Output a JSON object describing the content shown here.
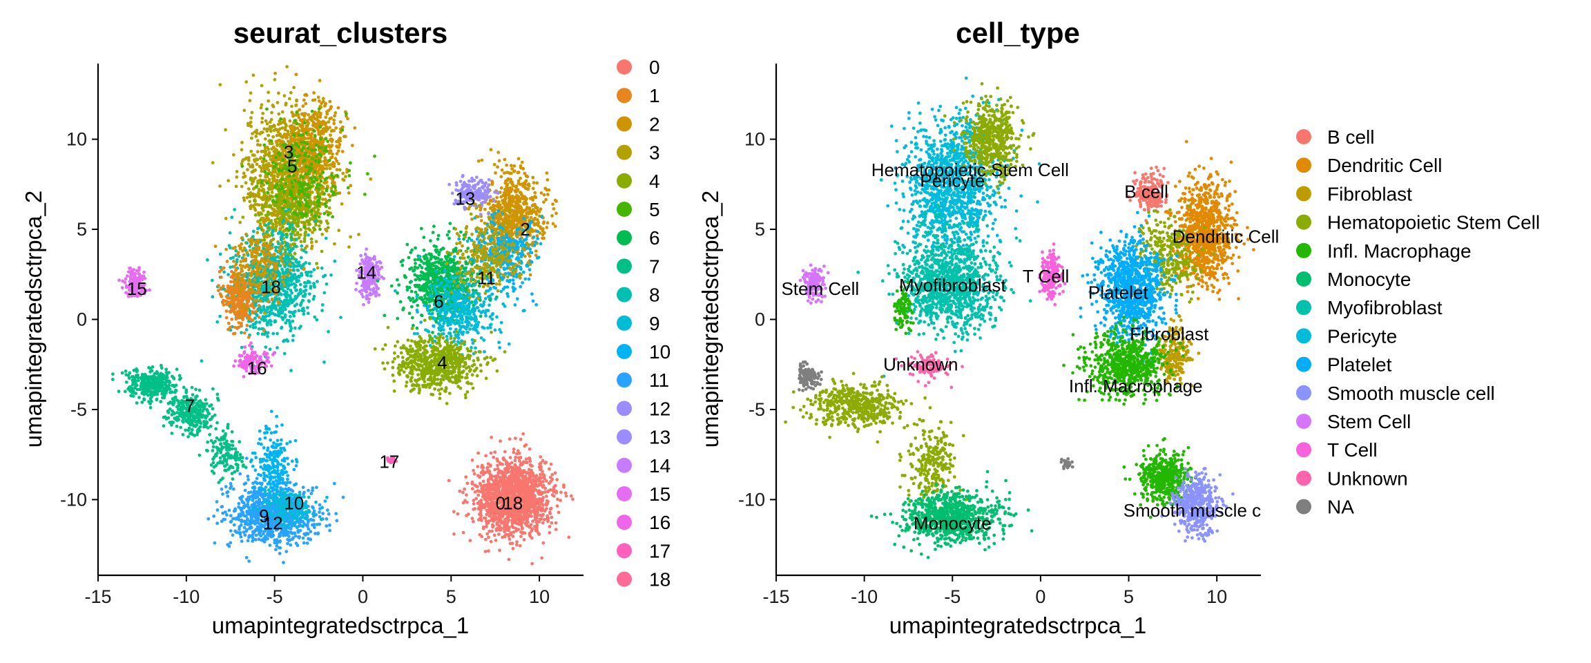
{
  "chart_data": [
    {
      "type": "scatter",
      "title": "seurat_clusters",
      "xlabel": "umapintegratedsctrpca_1",
      "ylabel": "umapintegratedsctrpca_2",
      "xlim": [
        -15,
        12.5
      ],
      "ylim": [
        -14.2,
        14.2
      ],
      "x_ticks": [
        "-15",
        "-10",
        "-5",
        "0",
        "5",
        "10"
      ],
      "x_tick_values": [
        -15,
        -10,
        -5,
        0,
        5,
        10
      ],
      "y_ticks": [
        "-10",
        "-5",
        "0",
        "5",
        "10"
      ],
      "y_tick_values": [
        -10,
        -5,
        0,
        5,
        10
      ],
      "legend_position": "right",
      "legend": [
        {
          "label": "0",
          "color": "#F8766D"
        },
        {
          "label": "1",
          "color": "#E7851E"
        },
        {
          "label": "2",
          "color": "#D09400"
        },
        {
          "label": "3",
          "color": "#B2A100"
        },
        {
          "label": "4",
          "color": "#89AC00"
        },
        {
          "label": "5",
          "color": "#45B500"
        },
        {
          "label": "6",
          "color": "#00BC51"
        },
        {
          "label": "7",
          "color": "#00C087"
        },
        {
          "label": "8",
          "color": "#00C0B2"
        },
        {
          "label": "9",
          "color": "#00BCD6"
        },
        {
          "label": "10",
          "color": "#00B3F2"
        },
        {
          "label": "11",
          "color": "#29A3FF"
        },
        {
          "label": "12",
          "color": "#9C8DFF"
        },
        {
          "label": "13",
          "color": "#9C8DFF"
        },
        {
          "label": "14",
          "color": "#C77CFF"
        },
        {
          "label": "15",
          "color": "#E46DF2"
        },
        {
          "label": "16",
          "color": "#F066EA"
        },
        {
          "label": "17",
          "color": "#FF62BC"
        },
        {
          "label": "18",
          "color": "#FF6A98"
        }
      ],
      "cluster_labels": [
        {
          "text": "3",
          "x": -4.2,
          "y": 9.3
        },
        {
          "text": "5",
          "x": -4.0,
          "y": 8.5
        },
        {
          "text": "18",
          "x": -5.2,
          "y": 1.8
        },
        {
          "text": "15",
          "x": -12.8,
          "y": 1.7
        },
        {
          "text": "16",
          "x": -6.0,
          "y": -2.7
        },
        {
          "text": "7",
          "x": -9.8,
          "y": -4.8
        },
        {
          "text": "13",
          "x": 5.8,
          "y": 6.7
        },
        {
          "text": "2",
          "x": 9.2,
          "y": 5.0
        },
        {
          "text": "14",
          "x": 0.2,
          "y": 2.6
        },
        {
          "text": "11",
          "x": 7.0,
          "y": 2.3
        },
        {
          "text": "6",
          "x": 4.3,
          "y": 1.0
        },
        {
          "text": "4",
          "x": 4.5,
          "y": -2.4
        },
        {
          "text": "17",
          "x": 1.5,
          "y": -7.9
        },
        {
          "text": "10",
          "x": -3.9,
          "y": -10.2
        },
        {
          "text": "9",
          "x": -5.6,
          "y": -10.9
        },
        {
          "text": "12",
          "x": -5.1,
          "y": -11.3
        },
        {
          "text": "0",
          "x": 7.8,
          "y": -10.2
        },
        {
          "text": "18",
          "x": 8.5,
          "y": -10.2
        }
      ],
      "series": [
        {
          "color_index": 3,
          "cx": -4.3,
          "cy": 8.0,
          "rx": 2.4,
          "ry": 3.8,
          "n": 1100
        },
        {
          "color_index": 2,
          "cx": -2.8,
          "cy": 9.5,
          "rx": 1.8,
          "ry": 2.5,
          "n": 500
        },
        {
          "color_index": 4,
          "cx": -4.0,
          "cy": 6.0,
          "rx": 2.0,
          "ry": 2.0,
          "n": 250
        },
        {
          "color_index": 5,
          "cx": -3.5,
          "cy": 8.0,
          "rx": 2.2,
          "ry": 3.0,
          "n": 250
        },
        {
          "color_index": 8,
          "cx": -5.2,
          "cy": 2.0,
          "rx": 2.5,
          "ry": 2.8,
          "n": 900
        },
        {
          "color_index": 1,
          "cx": -7.0,
          "cy": 1.2,
          "rx": 1.0,
          "ry": 1.6,
          "n": 300
        },
        {
          "color_index": 2,
          "cx": -5.8,
          "cy": 3.0,
          "rx": 1.5,
          "ry": 2.0,
          "n": 220
        },
        {
          "color_index": 15,
          "cx": -12.9,
          "cy": 2.0,
          "rx": 0.6,
          "ry": 0.8,
          "n": 140
        },
        {
          "color_index": 16,
          "cx": -6.3,
          "cy": -2.3,
          "rx": 1.0,
          "ry": 0.7,
          "n": 120
        },
        {
          "color_index": 7,
          "cx": -12.0,
          "cy": -3.6,
          "rx": 1.5,
          "ry": 0.8,
          "n": 300
        },
        {
          "color_index": 7,
          "cx": -9.7,
          "cy": -5.2,
          "rx": 1.2,
          "ry": 1.0,
          "n": 300
        },
        {
          "color_index": 7,
          "cx": -7.8,
          "cy": -7.5,
          "rx": 1.0,
          "ry": 1.3,
          "n": 140
        },
        {
          "color_index": 11,
          "cx": -5.2,
          "cy": -10.8,
          "rx": 2.5,
          "ry": 1.6,
          "n": 900
        },
        {
          "color_index": 10,
          "cx": -5.0,
          "cy": -8.0,
          "rx": 1.0,
          "ry": 1.8,
          "n": 200
        },
        {
          "color_index": 9,
          "cx": -4.2,
          "cy": -10.4,
          "rx": 1.5,
          "ry": 1.0,
          "n": 150
        },
        {
          "color_index": 2,
          "cx": 8.5,
          "cy": 5.8,
          "rx": 1.7,
          "ry": 2.4,
          "n": 700
        },
        {
          "color_index": 13,
          "cx": 6.2,
          "cy": 7.0,
          "rx": 1.0,
          "ry": 0.8,
          "n": 180
        },
        {
          "color_index": 10,
          "cx": 8.0,
          "cy": 3.5,
          "rx": 1.8,
          "ry": 2.0,
          "n": 350
        },
        {
          "color_index": 14,
          "cx": 0.4,
          "cy": 2.4,
          "rx": 0.6,
          "ry": 1.2,
          "n": 200
        },
        {
          "color_index": 6,
          "cx": 4.5,
          "cy": 2.0,
          "rx": 2.0,
          "ry": 2.2,
          "n": 700
        },
        {
          "color_index": 9,
          "cx": 5.5,
          "cy": 0.5,
          "rx": 2.2,
          "ry": 2.0,
          "n": 400
        },
        {
          "color_index": 4,
          "cx": 4.2,
          "cy": -2.5,
          "rx": 2.3,
          "ry": 1.4,
          "n": 650
        },
        {
          "color_index": 3,
          "cx": 7.0,
          "cy": 3.5,
          "rx": 2.0,
          "ry": 2.0,
          "n": 250
        },
        {
          "color_index": 17,
          "cx": 1.6,
          "cy": -7.8,
          "rx": 0.3,
          "ry": 0.2,
          "n": 20
        },
        {
          "color_index": 0,
          "cx": 8.5,
          "cy": -9.9,
          "rx": 2.2,
          "ry": 2.1,
          "n": 1400
        }
      ]
    },
    {
      "type": "scatter",
      "title": "cell_type",
      "xlabel": "umapintegratedsctrpca_1",
      "ylabel": "umapintegratedsctrpca_2",
      "xlim": [
        -15,
        12.5
      ],
      "ylim": [
        -14.2,
        14.2
      ],
      "x_ticks": [
        "-15",
        "-10",
        "-5",
        "0",
        "5",
        "10"
      ],
      "x_tick_values": [
        -15,
        -10,
        -5,
        0,
        5,
        10
      ],
      "y_ticks": [
        "-10",
        "-5",
        "0",
        "5",
        "10"
      ],
      "y_tick_values": [
        -10,
        -5,
        0,
        5,
        10
      ],
      "legend_position": "right",
      "legend": [
        {
          "label": "B cell",
          "color": "#F8766D"
        },
        {
          "label": "Dendritic Cell",
          "color": "#E18A00"
        },
        {
          "label": "Fibroblast",
          "color": "#BE9C00"
        },
        {
          "label": "Hematopoietic Stem Cell",
          "color": "#8CAB00"
        },
        {
          "label": "Infl. Macrophage",
          "color": "#24B700"
        },
        {
          "label": "Monocyte",
          "color": "#00BE70"
        },
        {
          "label": "Myofibroblast",
          "color": "#00C1AB"
        },
        {
          "label": "Pericyte",
          "color": "#00BBDA"
        },
        {
          "label": "Platelet",
          "color": "#00ACFC"
        },
        {
          "label": "Smooth muscle cell",
          "color": "#8B93FF"
        },
        {
          "label": "Stem Cell",
          "color": "#D575FE"
        },
        {
          "label": "T Cell",
          "color": "#F962DD"
        },
        {
          "label": "Unknown",
          "color": "#FF65AC"
        },
        {
          "label": "NA",
          "color": "#7F7F7F"
        }
      ],
      "cluster_labels": [
        {
          "text": "Hematopoietic Stem Cell",
          "x": -4.0,
          "y": 8.3
        },
        {
          "text": "Pericyte",
          "x": -5.0,
          "y": 7.7
        },
        {
          "text": "B cell",
          "x": 6.0,
          "y": 7.1
        },
        {
          "text": "Dendritic Cell",
          "x": 10.5,
          "y": 4.6
        },
        {
          "text": "T Cell",
          "x": 0.3,
          "y": 2.4
        },
        {
          "text": "Stem Cell",
          "x": -12.5,
          "y": 1.7
        },
        {
          "text": "Myofibroblast",
          "x": -5.0,
          "y": 1.9
        },
        {
          "text": "Platelet",
          "x": 4.4,
          "y": 1.5
        },
        {
          "text": "Fibroblast",
          "x": 7.3,
          "y": -0.8
        },
        {
          "text": "Unknown",
          "x": -6.8,
          "y": -2.5
        },
        {
          "text": "Infl. Macrophage",
          "x": 5.4,
          "y": -3.7
        },
        {
          "text": "Monocyte",
          "x": -5.0,
          "y": -11.3
        },
        {
          "text": "Smooth muscle c",
          "x": 8.6,
          "y": -10.6
        }
      ],
      "series": [
        {
          "color_index": 7,
          "cx": -5.0,
          "cy": 7.5,
          "rx": 2.6,
          "ry": 3.6,
          "n": 1200
        },
        {
          "color_index": 3,
          "cx": -2.8,
          "cy": 10.0,
          "rx": 1.6,
          "ry": 2.2,
          "n": 500
        },
        {
          "color_index": 6,
          "cx": -5.2,
          "cy": 2.0,
          "rx": 2.6,
          "ry": 2.8,
          "n": 1100
        },
        {
          "color_index": 4,
          "cx": -7.8,
          "cy": 0.5,
          "rx": 0.5,
          "ry": 1.0,
          "n": 100
        },
        {
          "color_index": 12,
          "cx": -6.3,
          "cy": -2.6,
          "rx": 1.1,
          "ry": 0.6,
          "n": 120
        },
        {
          "color_index": 10,
          "cx": -12.9,
          "cy": 2.0,
          "rx": 0.6,
          "ry": 0.8,
          "n": 140
        },
        {
          "color_index": 13,
          "cx": -13.2,
          "cy": -3.2,
          "rx": 0.6,
          "ry": 0.6,
          "n": 120
        },
        {
          "color_index": 3,
          "cx": -10.5,
          "cy": -4.8,
          "rx": 2.5,
          "ry": 1.2,
          "n": 450
        },
        {
          "color_index": 3,
          "cx": -6.2,
          "cy": -8.0,
          "rx": 1.5,
          "ry": 2.2,
          "n": 250
        },
        {
          "color_index": 5,
          "cx": -5.0,
          "cy": -11.0,
          "rx": 2.6,
          "ry": 1.4,
          "n": 850
        },
        {
          "color_index": 13,
          "cx": 1.5,
          "cy": -8.0,
          "rx": 0.3,
          "ry": 0.25,
          "n": 25
        },
        {
          "color_index": 11,
          "cx": 0.6,
          "cy": 2.4,
          "rx": 0.6,
          "ry": 1.2,
          "n": 200
        },
        {
          "color_index": 0,
          "cx": 6.2,
          "cy": 7.0,
          "rx": 0.8,
          "ry": 0.9,
          "n": 200
        },
        {
          "color_index": 1,
          "cx": 9.3,
          "cy": 4.7,
          "rx": 1.6,
          "ry": 2.8,
          "n": 900
        },
        {
          "color_index": 3,
          "cx": 7.2,
          "cy": 3.5,
          "rx": 1.6,
          "ry": 2.0,
          "n": 300
        },
        {
          "color_index": 8,
          "cx": 5.2,
          "cy": 1.7,
          "rx": 1.8,
          "ry": 2.6,
          "n": 900
        },
        {
          "color_index": 2,
          "cx": 7.6,
          "cy": -2.0,
          "rx": 0.8,
          "ry": 1.5,
          "n": 200
        },
        {
          "color_index": 4,
          "cx": 4.9,
          "cy": -2.5,
          "rx": 2.2,
          "ry": 1.6,
          "n": 700
        },
        {
          "color_index": 4,
          "cx": 7.0,
          "cy": -8.8,
          "rx": 1.3,
          "ry": 1.4,
          "n": 450
        },
        {
          "color_index": 9,
          "cx": 8.8,
          "cy": -10.3,
          "rx": 1.3,
          "ry": 1.5,
          "n": 450
        }
      ]
    }
  ]
}
